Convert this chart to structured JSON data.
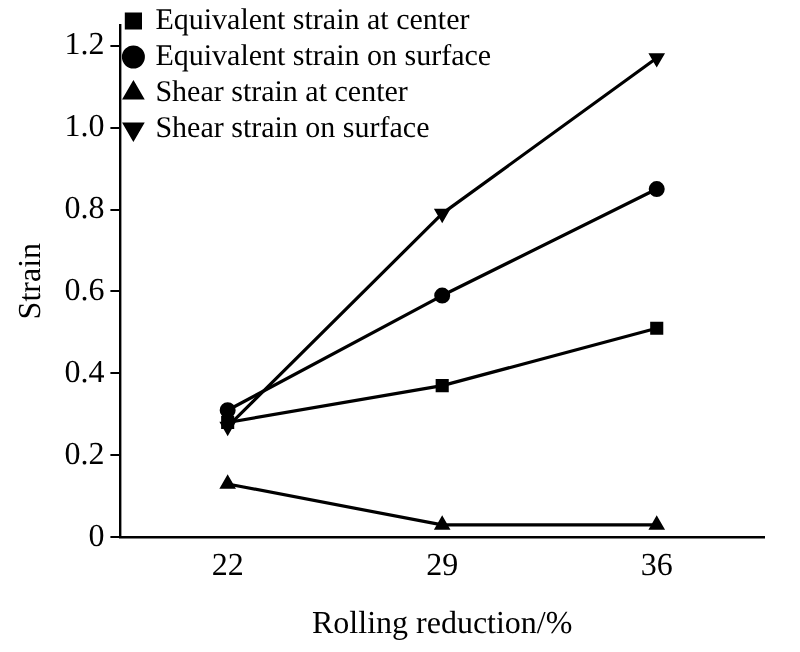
{
  "chart_data": {
    "type": "line",
    "xlabel": "Rolling reduction/%",
    "ylabel": "Strain",
    "categories": [
      "22",
      "29",
      "36"
    ],
    "ylim": [
      0,
      1.25
    ],
    "yticks": [
      0,
      0.2,
      0.4,
      0.6,
      0.8,
      {
        "value": 1,
        "label": "1.0"
      },
      1.2
    ],
    "grid": false,
    "legend": "top left",
    "line_style": "solid",
    "series": [
      {
        "name": "Equivalent strain at center",
        "color": "#000000",
        "marker": "square",
        "values": [
          0.28,
          0.37,
          0.51
        ]
      },
      {
        "name": "Equivalent strain on surface",
        "color": "#000000",
        "marker": "circle",
        "values": [
          0.31,
          0.59,
          0.85
        ]
      },
      {
        "name": "Shear strain at center",
        "color": "#000000",
        "marker": "triangle",
        "values": [
          0.13,
          0.03,
          0.03
        ]
      },
      {
        "name": "Shear strain on surface",
        "color": "#000000",
        "marker": "triangle-down",
        "values": [
          0.27,
          0.79,
          1.17
        ]
      }
    ]
  }
}
